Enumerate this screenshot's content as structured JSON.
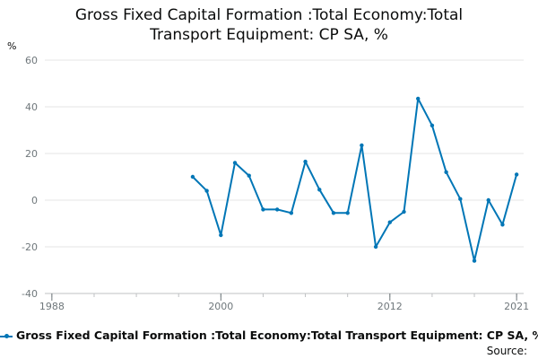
{
  "chart_data": {
    "type": "line",
    "title_lines": [
      "Gross Fixed Capital Formation :Total Economy:Total",
      "Transport Equipment: CP SA, %"
    ],
    "ylabel": "%",
    "ylim": [
      -40,
      60
    ],
    "yticks": [
      -40,
      -20,
      0,
      20,
      40,
      60
    ],
    "xlim": [
      1987.5,
      2021.5
    ],
    "xticks": [
      1988,
      2000,
      2012,
      2021
    ],
    "grid": true,
    "series": [
      {
        "name": "Gross Fixed Capital Formation :Total Economy:Total Transport Equipment: CP SA, %",
        "color": "#0076b6",
        "x": [
          1998,
          1999,
          2000,
          2001,
          2002,
          2003,
          2004,
          2005,
          2006,
          2007,
          2008,
          2009,
          2010,
          2011,
          2012,
          2013,
          2014,
          2015,
          2016,
          2017,
          2018,
          2019,
          2020,
          2021
        ],
        "y": [
          10,
          4,
          -15,
          16,
          10.5,
          -4,
          -4,
          -5.5,
          16.5,
          4.5,
          -5.5,
          -5.5,
          23.5,
          -20,
          -9.5,
          -5,
          43.5,
          32,
          12,
          0.5,
          -26,
          0,
          -10.5,
          11
        ]
      }
    ],
    "legend_position": "bottom"
  },
  "source_label": "Source:"
}
